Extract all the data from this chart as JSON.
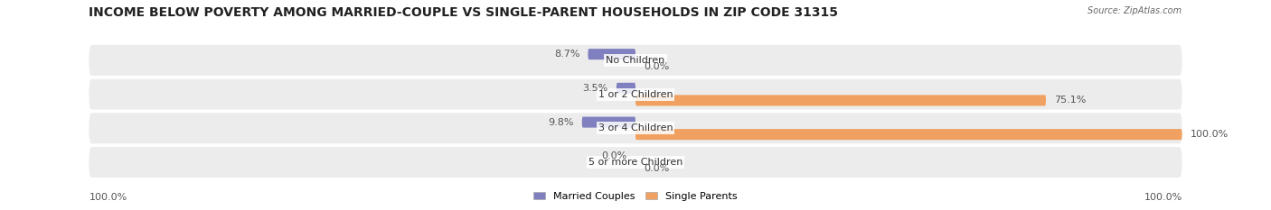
{
  "title": "INCOME BELOW POVERTY AMONG MARRIED-COUPLE VS SINGLE-PARENT HOUSEHOLDS IN ZIP CODE 31315",
  "source": "Source: ZipAtlas.com",
  "categories": [
    "No Children",
    "1 or 2 Children",
    "3 or 4 Children",
    "5 or more Children"
  ],
  "married_values": [
    8.7,
    3.5,
    9.8,
    0.0
  ],
  "single_values": [
    0.0,
    75.1,
    100.0,
    0.0
  ],
  "married_color": "#8080c0",
  "single_color": "#f0a060",
  "row_bg_color": "#ececec",
  "title_fontsize": 10,
  "label_fontsize": 8,
  "tick_fontsize": 8,
  "max_value": 100.0,
  "left_axis_label": "100.0%",
  "right_axis_label": "100.0%",
  "background_color": "#ffffff"
}
